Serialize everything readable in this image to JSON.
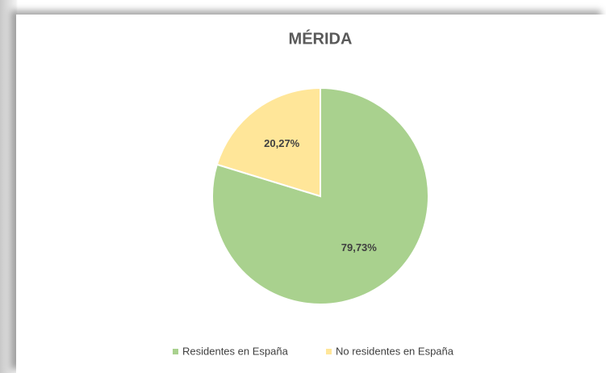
{
  "chart_data": {
    "type": "pie",
    "title": "MÉRIDA",
    "categories": [
      "Residentes en España",
      "No residentes en España"
    ],
    "values": [
      79.73,
      20.27
    ],
    "value_labels": [
      "79,73%",
      "20,27%"
    ],
    "colors": [
      "#a9d18e",
      "#ffe699"
    ],
    "legend": "bottom"
  }
}
